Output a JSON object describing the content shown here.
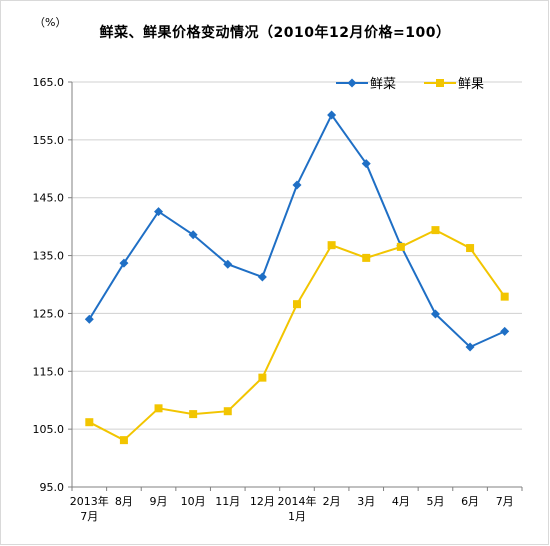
{
  "chart_data": {
    "type": "line",
    "title": "鲜菜、鲜果价格变动情况（2010年12月价格=100）",
    "unit_label": "（%）",
    "categories": [
      [
        "2013年",
        "7月"
      ],
      [
        "8月"
      ],
      [
        "9月"
      ],
      [
        "10月"
      ],
      [
        "11月"
      ],
      [
        "12月"
      ],
      [
        "2014年",
        "1月"
      ],
      [
        "2月"
      ],
      [
        "3月"
      ],
      [
        "4月"
      ],
      [
        "5月"
      ],
      [
        "6月"
      ],
      [
        "7月"
      ]
    ],
    "ylim": [
      95.0,
      165.0
    ],
    "yticks": [
      "95.0",
      "105.0",
      "115.0",
      "125.0",
      "135.0",
      "145.0",
      "155.0",
      "165.0"
    ],
    "grid": true,
    "legend_position": "top-right",
    "series": [
      {
        "name": "鲜菜",
        "color": "#1f6fc5",
        "marker": "diamond",
        "values": [
          124.0,
          133.7,
          142.6,
          138.6,
          133.5,
          131.3,
          147.2,
          159.3,
          150.9,
          136.7,
          124.9,
          119.2,
          121.9
        ]
      },
      {
        "name": "鲜果",
        "color": "#f2c500",
        "marker": "square",
        "values": [
          106.2,
          103.1,
          108.6,
          107.6,
          108.1,
          113.9,
          126.6,
          136.8,
          134.6,
          136.5,
          139.4,
          136.3,
          127.9
        ]
      }
    ]
  }
}
